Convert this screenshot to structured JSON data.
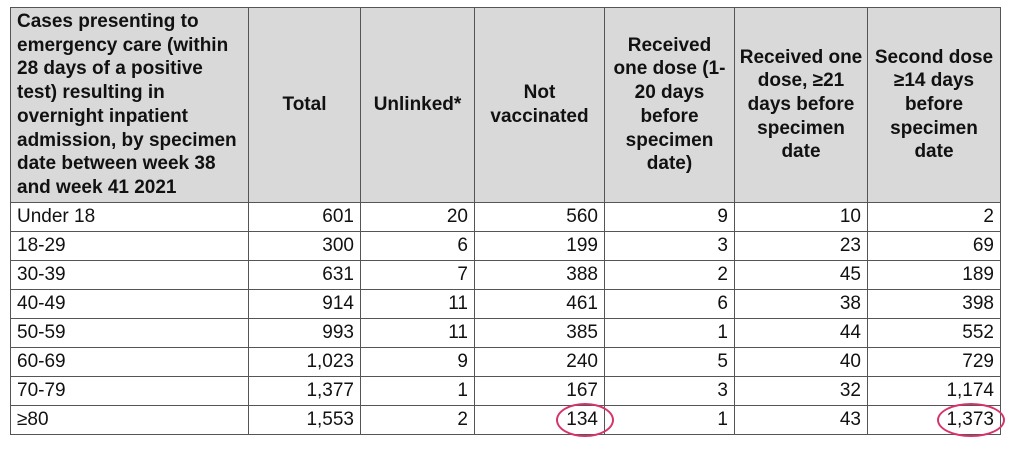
{
  "table": {
    "headers": [
      "Cases presenting to emergency care (within 28 days of a positive test) resulting in overnight inpatient admission, by specimen date between week 38 and week 41 2021",
      "Total",
      "Unlinked*",
      "Not vaccinated",
      "Received one dose (1-20 days before specimen date)",
      "Received one dose, ≥21 days before specimen date",
      "Second dose ≥14 days before specimen date"
    ],
    "rows": [
      [
        "Under 18",
        "601",
        "20",
        "560",
        "9",
        "10",
        "2"
      ],
      [
        "18-29",
        "300",
        "6",
        "199",
        "3",
        "23",
        "69"
      ],
      [
        "30-39",
        "631",
        "7",
        "388",
        "2",
        "45",
        "189"
      ],
      [
        "40-49",
        "914",
        "11",
        "461",
        "6",
        "38",
        "398"
      ],
      [
        "50-59",
        "993",
        "11",
        "385",
        "1",
        "44",
        "552"
      ],
      [
        "60-69",
        "1,023",
        "9",
        "240",
        "5",
        "40",
        "729"
      ],
      [
        "70-79",
        "1,377",
        "1",
        "167",
        "3",
        "32",
        "1,174"
      ],
      [
        "≥80",
        "1,553",
        "2",
        "134",
        "1",
        "43",
        "1,373"
      ]
    ]
  },
  "annotations": {
    "circle_color": "#d6336c",
    "circled_cells": [
      "134",
      "1,373"
    ]
  }
}
